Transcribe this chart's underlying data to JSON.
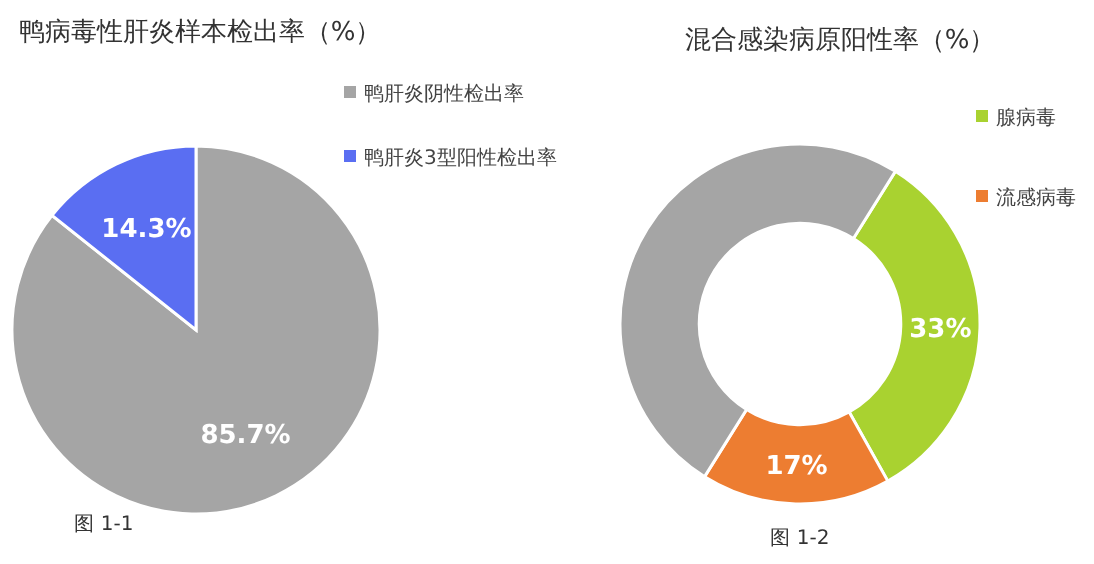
{
  "chart_data": [
    {
      "type": "pie",
      "title": "鸭病毒性肝炎样本检出率（%）",
      "categories": [
        "鸭肝炎阴性检出率",
        "鸭肝炎3型阳性检出率"
      ],
      "values": [
        85.7,
        14.3
      ],
      "colors": [
        "#a5a5a5",
        "#5a6ef2"
      ],
      "value_labels": [
        "85.7%",
        "14.3%"
      ],
      "legend": "top right",
      "annotations": [
        "图 1-1"
      ]
    },
    {
      "type": "donut",
      "title": "混合感染病原阳性率（%）",
      "categories": [
        "腺病毒",
        "流感病毒",
        null
      ],
      "values": [
        33,
        17,
        50
      ],
      "colors": [
        "#a9d230",
        "#ed7d31",
        "#a5a5a5"
      ],
      "value_labels": [
        "33%",
        "17%",
        null
      ],
      "legend": "top right",
      "annotations": [
        "图 1-2"
      ]
    }
  ]
}
